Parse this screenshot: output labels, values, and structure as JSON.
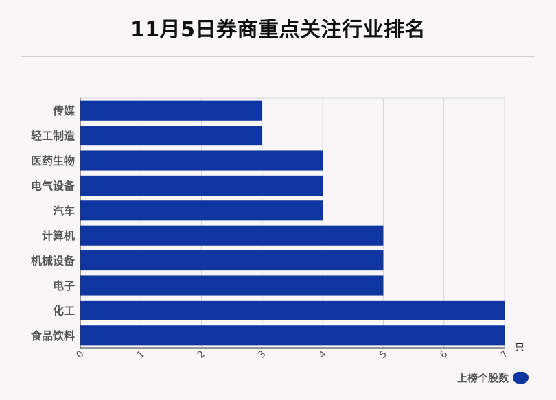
{
  "title": "11月5日券商重点关注行业排名",
  "chart_data": {
    "type": "bar",
    "orientation": "horizontal",
    "categories": [
      "传媒",
      "轻工制造",
      "医药生物",
      "电气设备",
      "汽车",
      "计算机",
      "机械设备",
      "电子",
      "化工",
      "食品饮料"
    ],
    "series": [
      {
        "name": "上榜个股数",
        "values": [
          3,
          3,
          4,
          4,
          4,
          5,
          5,
          5,
          7,
          7
        ]
      }
    ],
    "xlim": [
      0,
      7
    ],
    "xticks": [
      "0",
      "1",
      "2",
      "3",
      "4",
      "5",
      "6",
      "7"
    ],
    "unit": "只",
    "grid": true,
    "legend_position": "bottom-right",
    "bar_color": "#0e35a0"
  }
}
